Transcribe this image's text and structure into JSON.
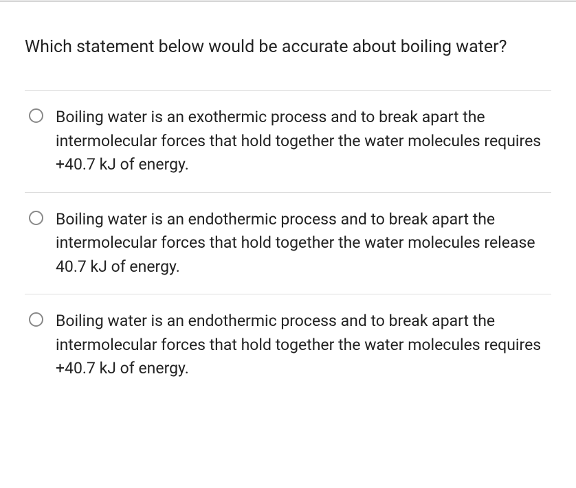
{
  "question": {
    "text": "Which statement below would be accurate about boiling water?"
  },
  "options": [
    {
      "text": "Boiling water is an exothermic process and to break apart the intermolecular forces that hold together the water molecules requires +40.7 kJ of energy."
    },
    {
      "text": "Boiling water is an endothermic process and to break apart the intermolecular forces that hold together the water molecules release 40.7 kJ of energy."
    },
    {
      "text": "Boiling water is an endothermic process and to break apart the intermolecular forces that hold together the water molecules requires +40.7 kJ of energy."
    }
  ],
  "colors": {
    "text": "#222222",
    "border": "#dddddd",
    "radio_border": "#888888",
    "background": "#ffffff",
    "top_accent": "#e8e8e8"
  },
  "typography": {
    "question_fontsize": 25,
    "option_fontsize": 23,
    "line_height": 1.5
  }
}
